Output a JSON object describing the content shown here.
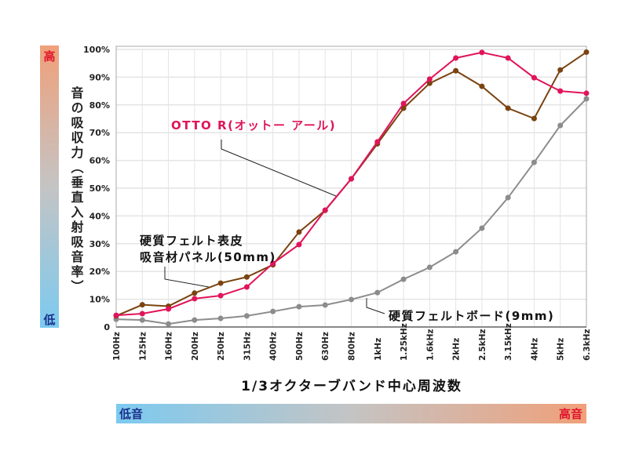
{
  "chart_data": {
    "type": "line",
    "xlabel": "1/3オクターブバンド中心周波数",
    "ylabel": "音の吸収力（垂直入射吸音率）",
    "ylim": [
      0,
      100
    ],
    "y_ticks": [
      "0",
      "10%",
      "20%",
      "30%",
      "40%",
      "50%",
      "60%",
      "70%",
      "80%",
      "90%",
      "100%"
    ],
    "grid": true,
    "categories": [
      "100Hz",
      "125Hz",
      "160Hz",
      "200Hz",
      "250Hz",
      "315Hz",
      "400Hz",
      "500Hz",
      "630Hz",
      "800Hz",
      "1kHz",
      "1.25kHz",
      "1.6kHz",
      "2kHz",
      "2.5kHz",
      "3.15kHz",
      "4kHz",
      "5kHz",
      "6.3kHz"
    ],
    "series": [
      {
        "name": "OTTO R(オットー アール)",
        "color": "#e0145a",
        "values": [
          4.2,
          4.8,
          6.5,
          10.2,
          11.3,
          14.4,
          22.9,
          29.7,
          42.1,
          53.4,
          66.7,
          80.5,
          89.3,
          96.9,
          98.9,
          96.9,
          89.8,
          85.0,
          84.2
        ]
      },
      {
        "name": "硬質フェルト表皮吸音材パネル(50mm)",
        "name_lines": [
          "硬質フェルト表皮",
          "吸音材パネル(50mm)"
        ],
        "color": "#7a4310",
        "values": [
          4.0,
          8.0,
          7.5,
          12.2,
          15.8,
          18.0,
          22.4,
          34.2,
          42.0,
          53.4,
          66.0,
          78.8,
          87.8,
          92.3,
          86.7,
          78.8,
          75.1,
          92.6,
          99.0
        ]
      },
      {
        "name": "硬質フェルトボード(9mm)",
        "color": "#8c8c8c",
        "values": [
          2.8,
          2.5,
          1.1,
          2.5,
          3.1,
          4.0,
          5.6,
          7.3,
          7.9,
          9.9,
          12.4,
          17.2,
          21.5,
          27.1,
          35.6,
          46.6,
          59.3,
          72.6,
          82.2
        ]
      }
    ],
    "y_scale_bar": {
      "high": "高",
      "low": "低"
    },
    "x_scale_bar": {
      "low": "低音",
      "high": "高音"
    },
    "colors": {
      "low": "#7ccaf0",
      "mid": "#c4c4c4",
      "high": "#f0a07a",
      "high_text": "#e0142a",
      "low_text": "#1a2f8a"
    }
  }
}
